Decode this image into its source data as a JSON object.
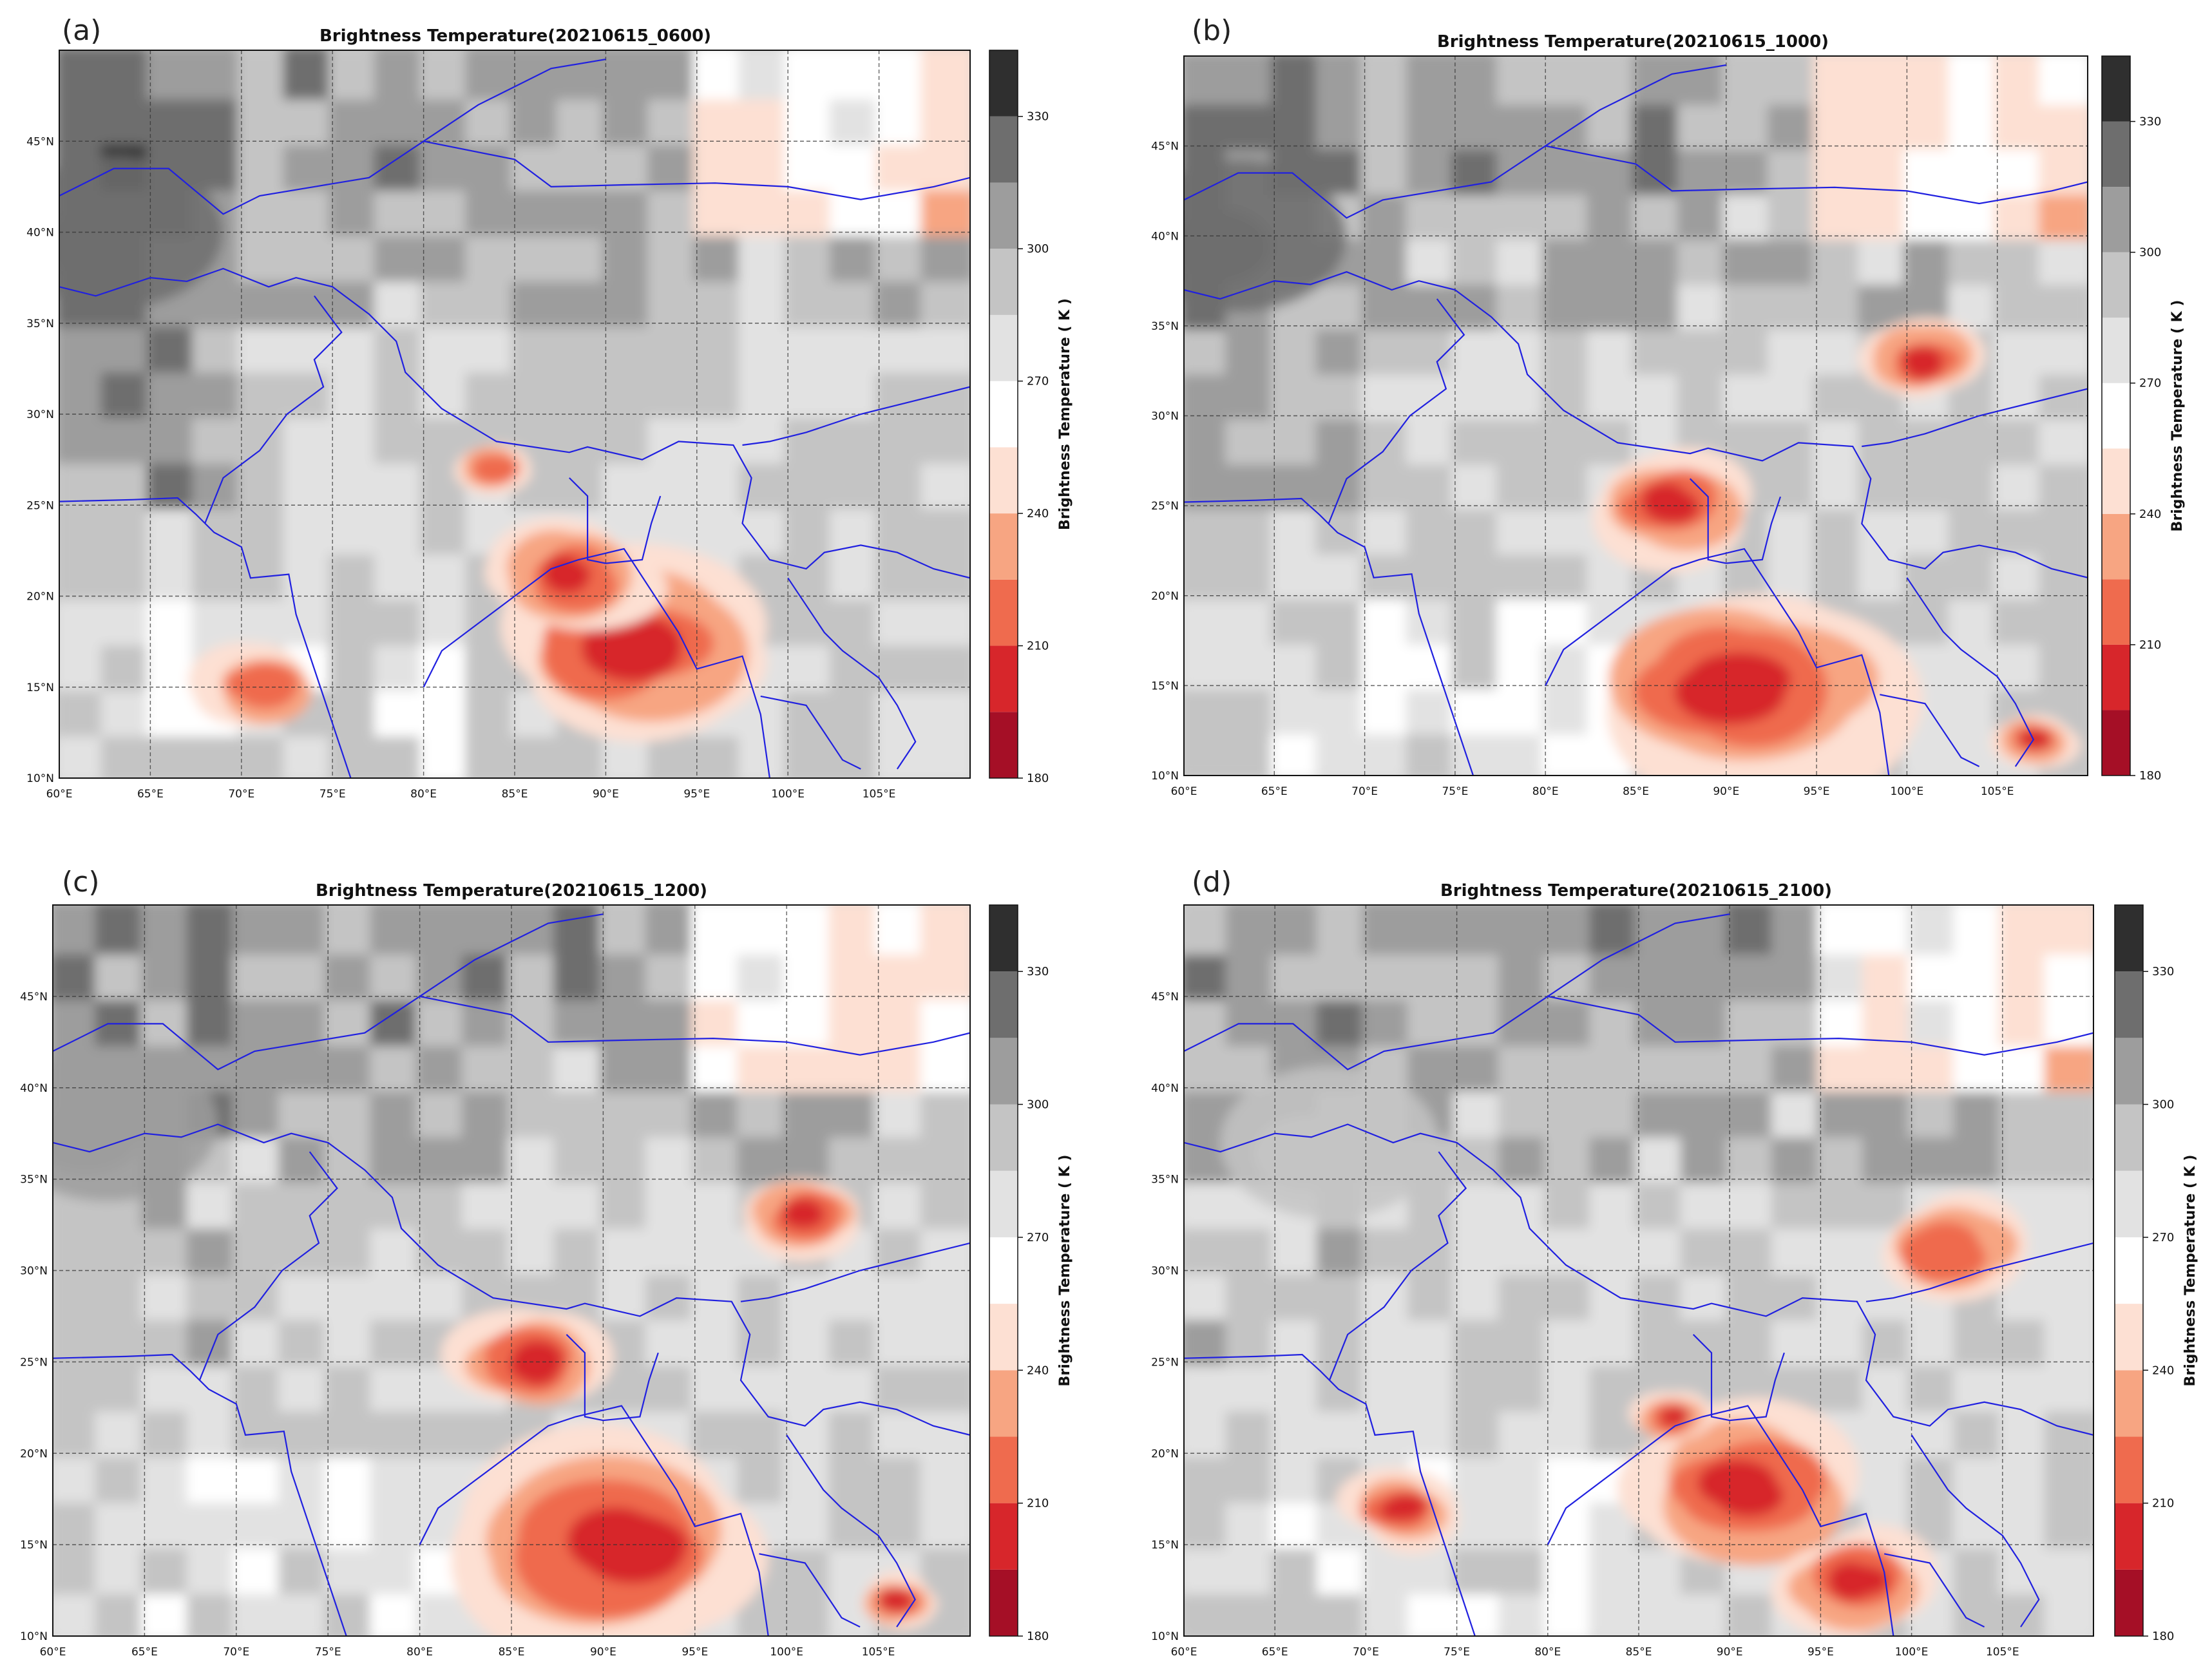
{
  "figure": {
    "colorbar": {
      "label": "Brightness Temperature ( K )",
      "ticks": [
        "180",
        "210",
        "240",
        "270",
        "300",
        "330"
      ],
      "bins": [
        {
          "low": 180,
          "high": 195,
          "color": "#a50f26"
        },
        {
          "low": 195,
          "high": 210,
          "color": "#d7262b"
        },
        {
          "low": 210,
          "high": 225,
          "color": "#ef6b4e"
        },
        {
          "low": 225,
          "high": 240,
          "color": "#f7a582"
        },
        {
          "low": 240,
          "high": 255,
          "color": "#fde0d3"
        },
        {
          "low": 255,
          "high": 270,
          "color": "#ffffff"
        },
        {
          "low": 270,
          "high": 285,
          "color": "#e2e2e2"
        },
        {
          "low": 285,
          "high": 300,
          "color": "#c4c4c4"
        },
        {
          "low": 300,
          "high": 315,
          "color": "#9d9d9d"
        },
        {
          "low": 315,
          "high": 330,
          "color": "#6e6e6e"
        },
        {
          "low": 330,
          "high": 345,
          "color": "#2f2f2f"
        }
      ]
    },
    "lon_ticks": [
      "60°E",
      "65°E",
      "70°E",
      "75°E",
      "80°E",
      "85°E",
      "90°E",
      "95°E",
      "100°E",
      "105°E"
    ],
    "lat_ticks": [
      "10°N",
      "15°N",
      "20°N",
      "25°N",
      "30°N",
      "35°N",
      "40°N",
      "45°N"
    ],
    "border_color": "#2020e0"
  },
  "chart_data": [
    {
      "type": "heatmap",
      "panel_label": "(a)",
      "title": "Brightness Temperature(20210615_0600)",
      "x_range": [
        60,
        110
      ],
      "y_range": [
        10,
        50
      ],
      "colorbar_range": [
        180,
        345
      ],
      "features": [
        {
          "kind": "cold-cloud",
          "lon": 91,
          "lat": 17,
          "min_tb": 195,
          "extent_deg": 7
        },
        {
          "kind": "cold-cloud",
          "lon": 88,
          "lat": 21,
          "min_tb": 200,
          "extent_deg": 4
        },
        {
          "kind": "cold-cloud",
          "lon": 71,
          "lat": 15,
          "min_tb": 210,
          "extent_deg": 3
        },
        {
          "kind": "cold-cloud",
          "lon": 84,
          "lat": 27,
          "min_tb": 215,
          "extent_deg": 2
        },
        {
          "kind": "warm-land",
          "lon": 63,
          "lat": 40,
          "max_tb": 330,
          "extent_deg": 6
        }
      ]
    },
    {
      "type": "heatmap",
      "panel_label": "(b)",
      "title": "Brightness Temperature(20210615_1000)",
      "x_range": [
        60,
        110
      ],
      "y_range": [
        10,
        50
      ],
      "colorbar_range": [
        180,
        345
      ],
      "features": [
        {
          "kind": "cold-cloud",
          "lon": 91,
          "lat": 15,
          "min_tb": 195,
          "extent_deg": 8
        },
        {
          "kind": "cold-cloud",
          "lon": 87,
          "lat": 25,
          "min_tb": 200,
          "extent_deg": 4
        },
        {
          "kind": "cold-cloud",
          "lon": 101,
          "lat": 33,
          "min_tb": 200,
          "extent_deg": 3
        },
        {
          "kind": "cold-cloud",
          "lon": 107,
          "lat": 12,
          "min_tb": 195,
          "extent_deg": 2
        },
        {
          "kind": "warm-land",
          "lon": 63,
          "lat": 40,
          "max_tb": 330,
          "extent_deg": 6
        }
      ]
    },
    {
      "type": "heatmap",
      "panel_label": "(c)",
      "title": "Brightness Temperature(20210615_1200)",
      "x_range": [
        60,
        110
      ],
      "y_range": [
        10,
        50
      ],
      "colorbar_range": [
        180,
        345
      ],
      "features": [
        {
          "kind": "cold-cloud",
          "lon": 91,
          "lat": 15,
          "min_tb": 195,
          "extent_deg": 8
        },
        {
          "kind": "cold-cloud",
          "lon": 86,
          "lat": 25,
          "min_tb": 200,
          "extent_deg": 4
        },
        {
          "kind": "cold-cloud",
          "lon": 101,
          "lat": 33,
          "min_tb": 195,
          "extent_deg": 3
        },
        {
          "kind": "cold-cloud",
          "lon": 106,
          "lat": 12,
          "min_tb": 205,
          "extent_deg": 2
        },
        {
          "kind": "warm-land",
          "lon": 63,
          "lat": 38,
          "max_tb": 315,
          "extent_deg": 6
        }
      ]
    },
    {
      "type": "heatmap",
      "panel_label": "(d)",
      "title": "Brightness Temperature(20210615_2100)",
      "x_range": [
        60,
        110
      ],
      "y_range": [
        10,
        50
      ],
      "colorbar_range": [
        180,
        345
      ],
      "features": [
        {
          "kind": "cold-cloud",
          "lon": 91,
          "lat": 18,
          "min_tb": 200,
          "extent_deg": 6
        },
        {
          "kind": "cold-cloud",
          "lon": 97,
          "lat": 13,
          "min_tb": 200,
          "extent_deg": 4
        },
        {
          "kind": "cold-cloud",
          "lon": 72,
          "lat": 17,
          "min_tb": 205,
          "extent_deg": 3
        },
        {
          "kind": "cold-cloud",
          "lon": 102,
          "lat": 31,
          "min_tb": 210,
          "extent_deg": 4
        },
        {
          "kind": "cold-cloud",
          "lon": 87,
          "lat": 22,
          "min_tb": 205,
          "extent_deg": 2
        },
        {
          "kind": "warm-land",
          "lon": 68,
          "lat": 37,
          "max_tb": 300,
          "extent_deg": 6
        }
      ]
    }
  ]
}
